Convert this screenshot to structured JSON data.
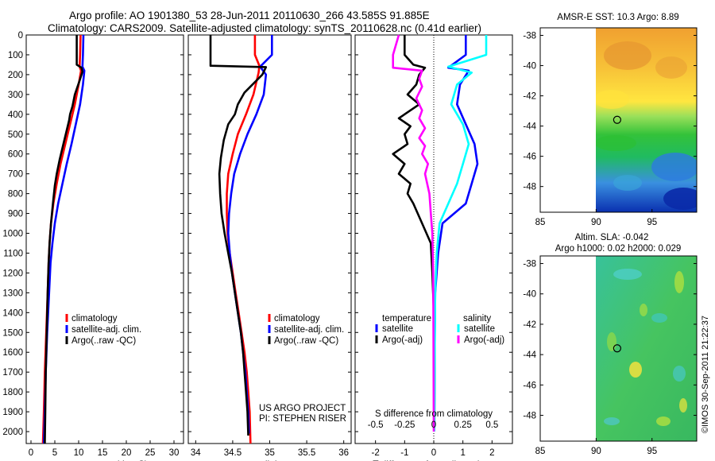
{
  "header": {
    "line1": "Argo profile: AO 1901380_53 28-Jun-2011 20110630_266 43.585S 91.885E",
    "line2": "Climatology: CARS2009. Satellite-adjusted climatology: synTS_20110628.nc (0.41d earlier)"
  },
  "colors": {
    "climatology": "#ff0000",
    "satellite": "#0000ff",
    "argo": "#000000",
    "sat_sal": "#00ffff",
    "argo_sal": "#ff00ff"
  },
  "depth_ticks": [
    0,
    100,
    200,
    300,
    400,
    500,
    600,
    700,
    800,
    900,
    1000,
    1100,
    1200,
    1300,
    1400,
    1500,
    1600,
    1700,
    1800,
    1900,
    2000
  ],
  "chart_data": [
    {
      "type": "line",
      "name": "temperature-profile",
      "xlabel": "temperature (deg C)",
      "xlim": [
        -1,
        32
      ],
      "ylim": [
        0,
        2060
      ],
      "xticks": [
        "0",
        "5",
        "10",
        "15",
        "20",
        "25",
        "30"
      ],
      "legend": [
        "climatology",
        "satellite-adj. clim.",
        "Argo(..raw -QC)"
      ],
      "series": [
        {
          "name": "climatology",
          "color": "#ff0000",
          "points": [
            [
              10.4,
              0
            ],
            [
              10.3,
              100
            ],
            [
              10.2,
              160
            ],
            [
              10.5,
              180
            ],
            [
              10.0,
              250
            ],
            [
              9.2,
              350
            ],
            [
              8.2,
              450
            ],
            [
              7.2,
              550
            ],
            [
              6.2,
              650
            ],
            [
              5.4,
              750
            ],
            [
              4.7,
              850
            ],
            [
              4.2,
              950
            ],
            [
              3.9,
              1050
            ],
            [
              3.7,
              1150
            ],
            [
              3.5,
              1300
            ],
            [
              3.2,
              1500
            ],
            [
              2.9,
              1700
            ],
            [
              2.7,
              1900
            ],
            [
              2.5,
              2060
            ]
          ]
        },
        {
          "name": "satellite-adj. clim.",
          "color": "#0000ff",
          "points": [
            [
              11.0,
              0
            ],
            [
              10.9,
              100
            ],
            [
              10.8,
              160
            ],
            [
              11.2,
              180
            ],
            [
              10.9,
              250
            ],
            [
              10.3,
              350
            ],
            [
              9.4,
              450
            ],
            [
              8.5,
              550
            ],
            [
              7.5,
              650
            ],
            [
              6.6,
              750
            ],
            [
              5.7,
              850
            ],
            [
              5.0,
              950
            ],
            [
              4.5,
              1050
            ],
            [
              4.1,
              1150
            ],
            [
              3.8,
              1300
            ],
            [
              3.4,
              1500
            ],
            [
              3.1,
              1700
            ],
            [
              2.9,
              1900
            ],
            [
              2.7,
              2060
            ]
          ]
        },
        {
          "name": "Argo(..raw -QC)",
          "color": "#000000",
          "points": [
            [
              9.6,
              0
            ],
            [
              9.6,
              150
            ],
            [
              10.6,
              165
            ],
            [
              10.8,
              185
            ],
            [
              10.2,
              230
            ],
            [
              9.2,
              300
            ],
            [
              8.7,
              360
            ],
            [
              8.2,
              400
            ],
            [
              8.0,
              430
            ],
            [
              7.5,
              480
            ],
            [
              6.8,
              550
            ],
            [
              6.0,
              630
            ],
            [
              5.4,
              700
            ],
            [
              5.0,
              760
            ],
            [
              4.6,
              850
            ],
            [
              4.2,
              950
            ],
            [
              3.9,
              1050
            ],
            [
              3.7,
              1150
            ],
            [
              3.5,
              1300
            ],
            [
              3.3,
              1500
            ],
            [
              3.1,
              1700
            ],
            [
              3.0,
              1900
            ],
            [
              2.9,
              2060
            ]
          ]
        }
      ]
    },
    {
      "type": "line",
      "name": "salinity-profile",
      "xlabel": "salinity",
      "xlim": [
        33.9,
        36.1
      ],
      "ylim": [
        0,
        2060
      ],
      "xticks": [
        "34",
        "34.5",
        "35",
        "35.5",
        "36"
      ],
      "legend": [
        "climatology",
        "satellite-adj. clim.",
        "Argo(..raw -QC)"
      ],
      "annotation": [
        "US ARGO PROJECT",
        "PI: STEPHEN RISER"
      ],
      "series": [
        {
          "name": "climatology",
          "color": "#ff0000",
          "points": [
            [
              34.8,
              0
            ],
            [
              34.8,
              100
            ],
            [
              34.86,
              155
            ],
            [
              34.85,
              190
            ],
            [
              34.78,
              300
            ],
            [
              34.68,
              400
            ],
            [
              34.57,
              500
            ],
            [
              34.5,
              600
            ],
            [
              34.44,
              700
            ],
            [
              34.42,
              800
            ],
            [
              34.42,
              900
            ],
            [
              34.43,
              1000
            ],
            [
              34.46,
              1100
            ],
            [
              34.5,
              1200
            ],
            [
              34.54,
              1300
            ],
            [
              34.58,
              1400
            ],
            [
              34.62,
              1500
            ],
            [
              34.66,
              1600
            ],
            [
              34.69,
              1700
            ],
            [
              34.71,
              1800
            ],
            [
              34.73,
              1900
            ],
            [
              34.74,
              2060
            ]
          ]
        },
        {
          "name": "satellite-adj. clim.",
          "color": "#0000ff",
          "points": [
            [
              35.03,
              0
            ],
            [
              35.03,
              100
            ],
            [
              34.87,
              160
            ],
            [
              34.95,
              200
            ],
            [
              34.92,
              300
            ],
            [
              34.82,
              400
            ],
            [
              34.7,
              500
            ],
            [
              34.6,
              600
            ],
            [
              34.52,
              700
            ],
            [
              34.48,
              800
            ],
            [
              34.45,
              900
            ],
            [
              34.44,
              1000
            ],
            [
              34.46,
              1100
            ],
            [
              34.49,
              1200
            ],
            [
              34.53,
              1300
            ],
            [
              34.57,
              1400
            ],
            [
              34.61,
              1500
            ],
            [
              34.64,
              1600
            ],
            [
              34.67,
              1700
            ],
            [
              34.69,
              1800
            ],
            [
              34.71,
              1900
            ],
            [
              34.72,
              2010
            ]
          ]
        },
        {
          "name": "Argo(..raw -QC)",
          "color": "#000000",
          "points": [
            [
              34.2,
              0
            ],
            [
              34.2,
              155
            ],
            [
              34.95,
              162
            ],
            [
              34.9,
              200
            ],
            [
              34.82,
              230
            ],
            [
              34.66,
              290
            ],
            [
              34.57,
              350
            ],
            [
              34.53,
              400
            ],
            [
              34.44,
              450
            ],
            [
              34.38,
              530
            ],
            [
              34.34,
              620
            ],
            [
              34.32,
              700
            ],
            [
              34.33,
              800
            ],
            [
              34.35,
              900
            ],
            [
              34.39,
              1000
            ],
            [
              34.44,
              1100
            ],
            [
              34.49,
              1200
            ],
            [
              34.53,
              1300
            ],
            [
              34.57,
              1400
            ],
            [
              34.61,
              1500
            ],
            [
              34.64,
              1600
            ],
            [
              34.66,
              1700
            ],
            [
              34.68,
              1800
            ],
            [
              34.7,
              1900
            ],
            [
              34.71,
              2020
            ]
          ]
        }
      ]
    },
    {
      "type": "line",
      "name": "difference-profile",
      "xlabel": "T difference from climatology",
      "xlabel_top": "S difference from climatology",
      "xlim": [
        -2.7,
        2.7
      ],
      "ylim": [
        0,
        2060
      ],
      "xticks": [
        "-2",
        "-1",
        "0",
        "1",
        "2"
      ],
      "xticks_s": [
        "-0.5",
        "-0.25",
        "0",
        "0.25",
        "0.5"
      ],
      "legend_headers": [
        "temperature",
        "salinity"
      ],
      "legend": [
        "satellite",
        "Argo(-adj)",
        "satellite",
        "Argo(-adj)"
      ],
      "series": [
        {
          "name": "temperature satellite",
          "color": "#0000ff",
          "points": [
            [
              1.1,
              0
            ],
            [
              1.1,
              100
            ],
            [
              0.5,
              165
            ],
            [
              1.2,
              180
            ],
            [
              0.9,
              250
            ],
            [
              0.8,
              350
            ],
            [
              1.1,
              450
            ],
            [
              1.4,
              550
            ],
            [
              1.5,
              650
            ],
            [
              1.3,
              750
            ],
            [
              1.1,
              850
            ],
            [
              0.3,
              950
            ],
            [
              0.15,
              1100
            ],
            [
              0.05,
              1300
            ],
            [
              0.03,
              1600
            ],
            [
              0.02,
              2000
            ]
          ]
        },
        {
          "name": "temperature Argo(-adj)",
          "color": "#000000",
          "points": [
            [
              -1.0,
              0
            ],
            [
              -1.0,
              100
            ],
            [
              -0.7,
              150
            ],
            [
              -0.3,
              165
            ],
            [
              -0.5,
              200
            ],
            [
              -0.6,
              250
            ],
            [
              -0.9,
              300
            ],
            [
              -0.5,
              350
            ],
            [
              -1.2,
              420
            ],
            [
              -0.8,
              460
            ],
            [
              -1.0,
              500
            ],
            [
              -0.9,
              550
            ],
            [
              -1.4,
              600
            ],
            [
              -1.0,
              650
            ],
            [
              -1.2,
              700
            ],
            [
              -0.8,
              750
            ],
            [
              -0.9,
              800
            ],
            [
              -0.7,
              850
            ],
            [
              -0.4,
              950
            ],
            [
              -0.1,
              1050
            ],
            [
              -0.05,
              1200
            ],
            [
              0.03,
              1500
            ],
            [
              0.02,
              2000
            ]
          ]
        },
        {
          "name": "salinity satellite",
          "color": "#00ffff",
          "points": [
            [
              1.8,
              0
            ],
            [
              1.8,
              100
            ],
            [
              0.5,
              160
            ],
            [
              1.3,
              190
            ],
            [
              0.8,
              250
            ],
            [
              0.6,
              350
            ],
            [
              1.0,
              450
            ],
            [
              1.2,
              550
            ],
            [
              1.0,
              650
            ],
            [
              0.8,
              750
            ],
            [
              0.5,
              850
            ],
            [
              0.2,
              950
            ],
            [
              0.1,
              1100
            ],
            [
              0.05,
              1300
            ],
            [
              0.03,
              1600
            ],
            [
              0.02,
              2000
            ]
          ]
        },
        {
          "name": "salinity Argo(-adj)",
          "color": "#ff00ff",
          "points": [
            [
              -1.2,
              0
            ],
            [
              -1.4,
              100
            ],
            [
              -1.4,
              165
            ],
            [
              -0.4,
              180
            ],
            [
              -0.5,
              220
            ],
            [
              -0.4,
              260
            ],
            [
              -0.6,
              320
            ],
            [
              -0.4,
              380
            ],
            [
              -0.5,
              420
            ],
            [
              -0.3,
              470
            ],
            [
              -0.5,
              520
            ],
            [
              -0.3,
              560
            ],
            [
              -0.4,
              600
            ],
            [
              -0.2,
              650
            ],
            [
              -0.3,
              700
            ],
            [
              -0.15,
              800
            ],
            [
              -0.1,
              900
            ],
            [
              -0.05,
              1000
            ],
            [
              -0.02,
              1200
            ],
            [
              -0.01,
              1500
            ],
            [
              0.0,
              2000
            ]
          ]
        }
      ]
    },
    {
      "type": "heatmap",
      "name": "sst-map",
      "title": "AMSR-E SST: 10.3 Argo: 8.89",
      "xlim": [
        85,
        99
      ],
      "ylim": [
        -49.7,
        -37.5
      ],
      "xticks": [
        "85",
        "90",
        "95"
      ],
      "yticks": [
        "-38",
        "-40",
        "-42",
        "-44",
        "-46",
        "-48"
      ],
      "argo_position": [
        91.885,
        -43.585
      ]
    },
    {
      "type": "heatmap",
      "name": "sla-map",
      "title_line1": "Altim. SLA: -0.042",
      "title_line2": "Argo h1000: 0.02 h2000: 0.029",
      "xlim": [
        85,
        99
      ],
      "ylim": [
        -49.7,
        -37.5
      ],
      "xticks": [
        "85",
        "90",
        "95"
      ],
      "yticks": [
        "-38",
        "-40",
        "-42",
        "-44",
        "-46",
        "-48"
      ],
      "argo_position": [
        91.885,
        -43.585
      ]
    }
  ],
  "watermark": "©IMOS 30-Sep-2011 21:22:37"
}
